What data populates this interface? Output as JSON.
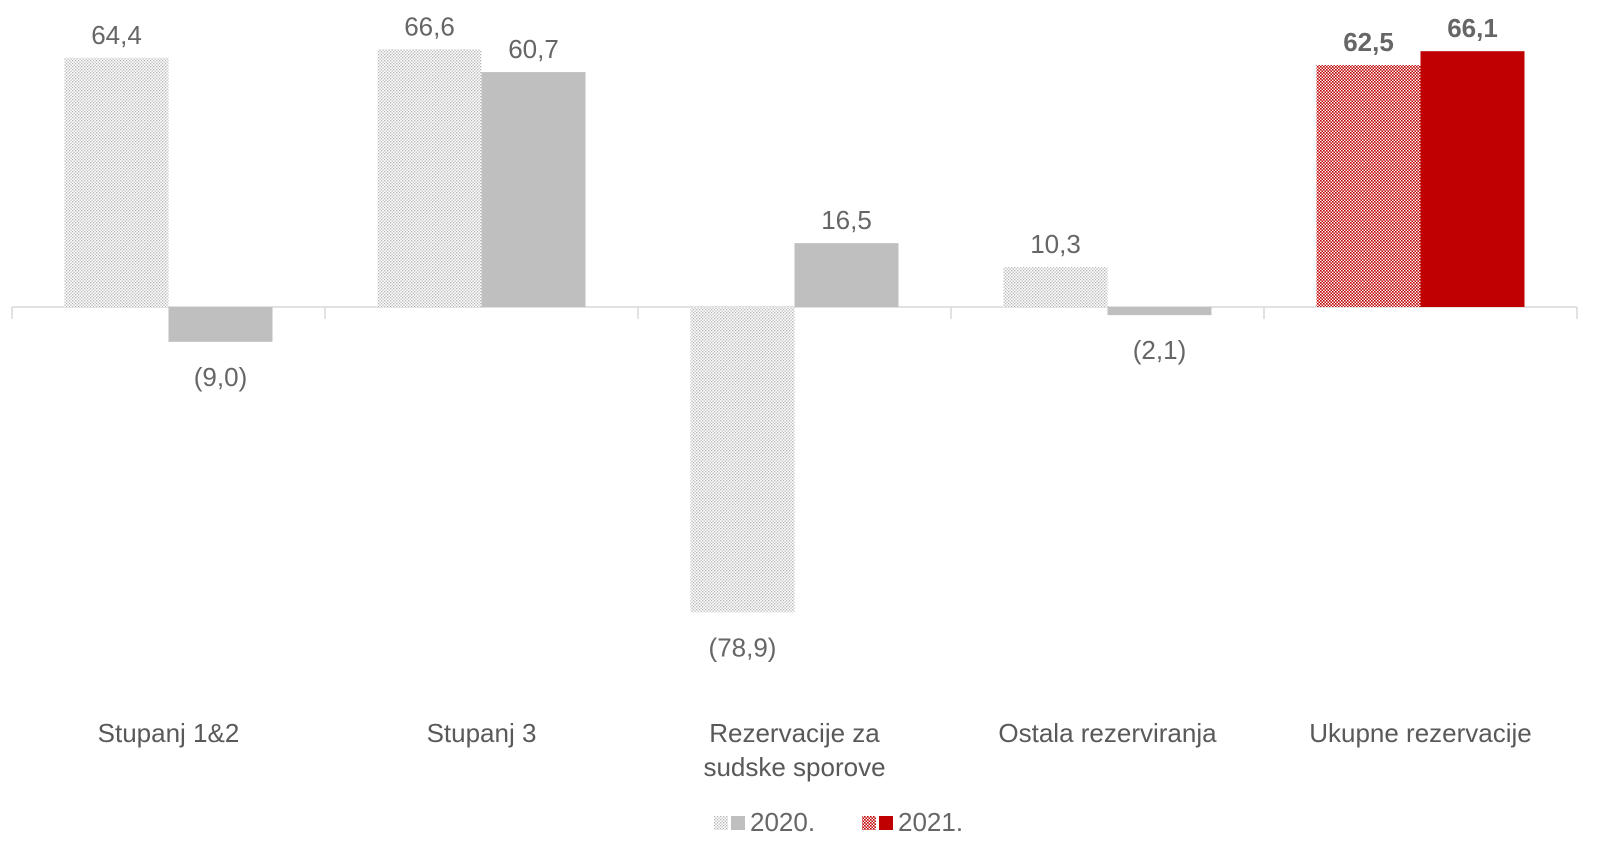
{
  "chart_data": {
    "type": "bar",
    "categories": [
      "Stupanj 1&2",
      "Stupanj 3",
      "Rezervacije za sudske sporove",
      "Ostala rezerviranja",
      "Ukupne rezervacije"
    ],
    "series": [
      {
        "name": "2020.",
        "values": [
          64.4,
          66.6,
          -78.9,
          10.3,
          62.5
        ],
        "labels": [
          "64,4",
          "66,6",
          "(78,9)",
          "10,3",
          "62,5"
        ]
      },
      {
        "name": "2021.",
        "values": [
          -9.0,
          60.7,
          16.5,
          -2.1,
          66.1
        ],
        "labels": [
          "(9,0)",
          "60,7",
          "16,5",
          "(2,1)",
          "66,1"
        ]
      }
    ],
    "colors": {
      "grey": "#bfbfbf",
      "grey_pattern": "#c8c8c8",
      "red": "#c00000",
      "red_pattern": "#c00000",
      "axis": "#d9d9d9",
      "label": "#666666"
    },
    "highlight_category": "Ukupne rezervacije",
    "legend_position": "bottom",
    "grid": false
  }
}
